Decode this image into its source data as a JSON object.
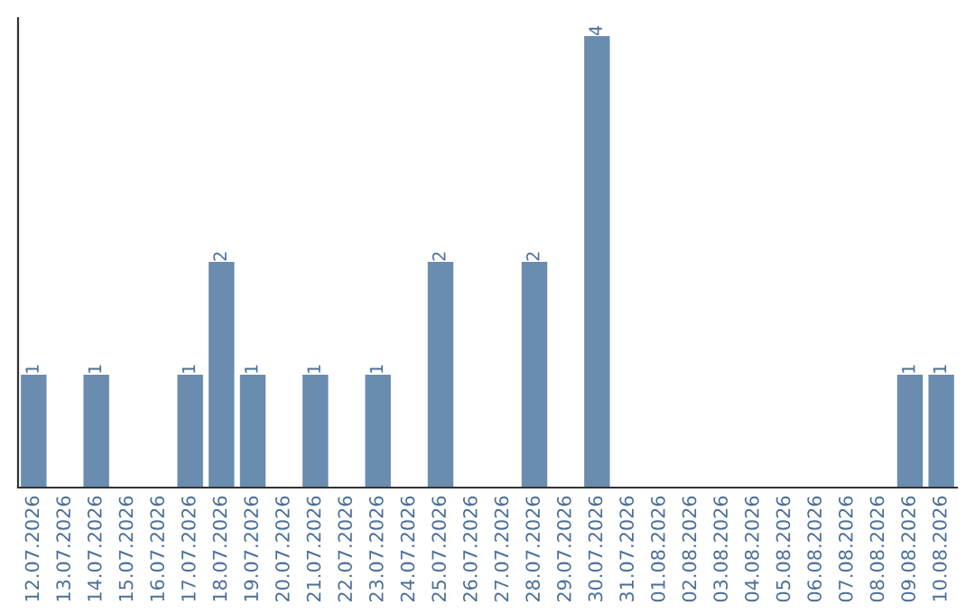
{
  "chart_data": {
    "type": "bar",
    "categories": [
      "12.07.2026",
      "13.07.2026",
      "14.07.2026",
      "15.07.2026",
      "16.07.2026",
      "17.07.2026",
      "18.07.2026",
      "19.07.2026",
      "20.07.2026",
      "21.07.2026",
      "22.07.2026",
      "23.07.2026",
      "24.07.2026",
      "25.07.2026",
      "26.07.2026",
      "27.07.2026",
      "28.07.2026",
      "29.07.2026",
      "30.07.2026",
      "31.07.2026",
      "01.08.2026",
      "02.08.2026",
      "03.08.2026",
      "04.08.2026",
      "05.08.2026",
      "06.08.2026",
      "07.08.2026",
      "08.08.2026",
      "09.08.2026",
      "10.08.2026"
    ],
    "values": [
      1,
      0,
      1,
      0,
      0,
      1,
      2,
      1,
      0,
      1,
      0,
      1,
      0,
      2,
      0,
      0,
      2,
      0,
      4,
      0,
      0,
      0,
      0,
      0,
      0,
      0,
      0,
      0,
      1,
      1
    ],
    "value_labels": [
      "1",
      null,
      "1",
      null,
      null,
      "1",
      "2",
      "1",
      null,
      "1",
      null,
      "1",
      null,
      "2",
      null,
      null,
      "2",
      null,
      "4",
      null,
      null,
      null,
      null,
      null,
      null,
      null,
      null,
      null,
      "1",
      "1"
    ],
    "color": "#6a8caf",
    "grid": false,
    "legend": false,
    "tick_labels": "x"
  }
}
